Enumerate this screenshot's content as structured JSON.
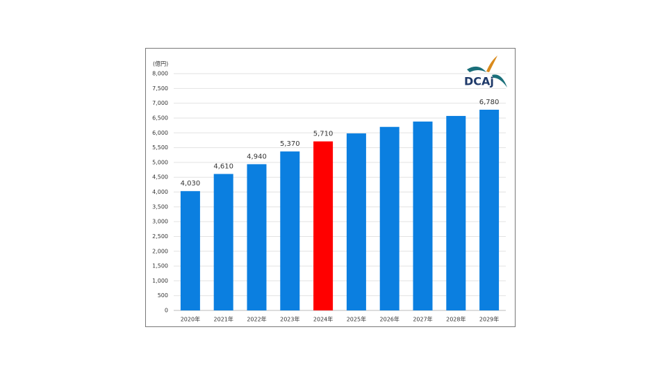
{
  "chart_data": {
    "type": "bar",
    "unit_label": "(億円)",
    "logo_text": "DCAj",
    "categories": [
      "2020年",
      "2021年",
      "2022年",
      "2023年",
      "2024年",
      "2025年",
      "2026年",
      "2027年",
      "2028年",
      "2029年"
    ],
    "values": [
      4030,
      4610,
      4940,
      5370,
      5710,
      5980,
      6200,
      6380,
      6570,
      6780
    ],
    "value_labels": [
      "4,030",
      "4,610",
      "4,940",
      "5,370",
      "5,710",
      null,
      null,
      null,
      null,
      "6,780"
    ],
    "colors": [
      "#0b7fe0",
      "#0b7fe0",
      "#0b7fe0",
      "#0b7fe0",
      "#ff0000",
      "#0b7fe0",
      "#0b7fe0",
      "#0b7fe0",
      "#0b7fe0",
      "#0b7fe0"
    ],
    "ylim": [
      0,
      8000
    ],
    "yticks": [
      0,
      500,
      {
        "value": 1000,
        "label": "1,000"
      },
      {
        "value": 1500,
        "label": "1,500"
      },
      {
        "value": 2000,
        "label": "2,000"
      },
      {
        "value": 2500,
        "label": "2,500"
      },
      {
        "value": 3000,
        "label": "3,000"
      },
      {
        "value": 3500,
        "label": "3,500"
      },
      {
        "value": 4000,
        "label": "4,000"
      },
      {
        "value": 4500,
        "label": "4,500"
      },
      {
        "value": 5000,
        "label": "5,000"
      },
      {
        "value": 5500,
        "label": "5,500"
      },
      {
        "value": 6000,
        "label": "6,000"
      },
      {
        "value": 6500,
        "label": "6,500"
      },
      {
        "value": 7000,
        "label": "7,000"
      },
      {
        "value": 7500,
        "label": "7,500"
      },
      {
        "value": 8000,
        "label": "8,000"
      }
    ],
    "grid": true
  }
}
